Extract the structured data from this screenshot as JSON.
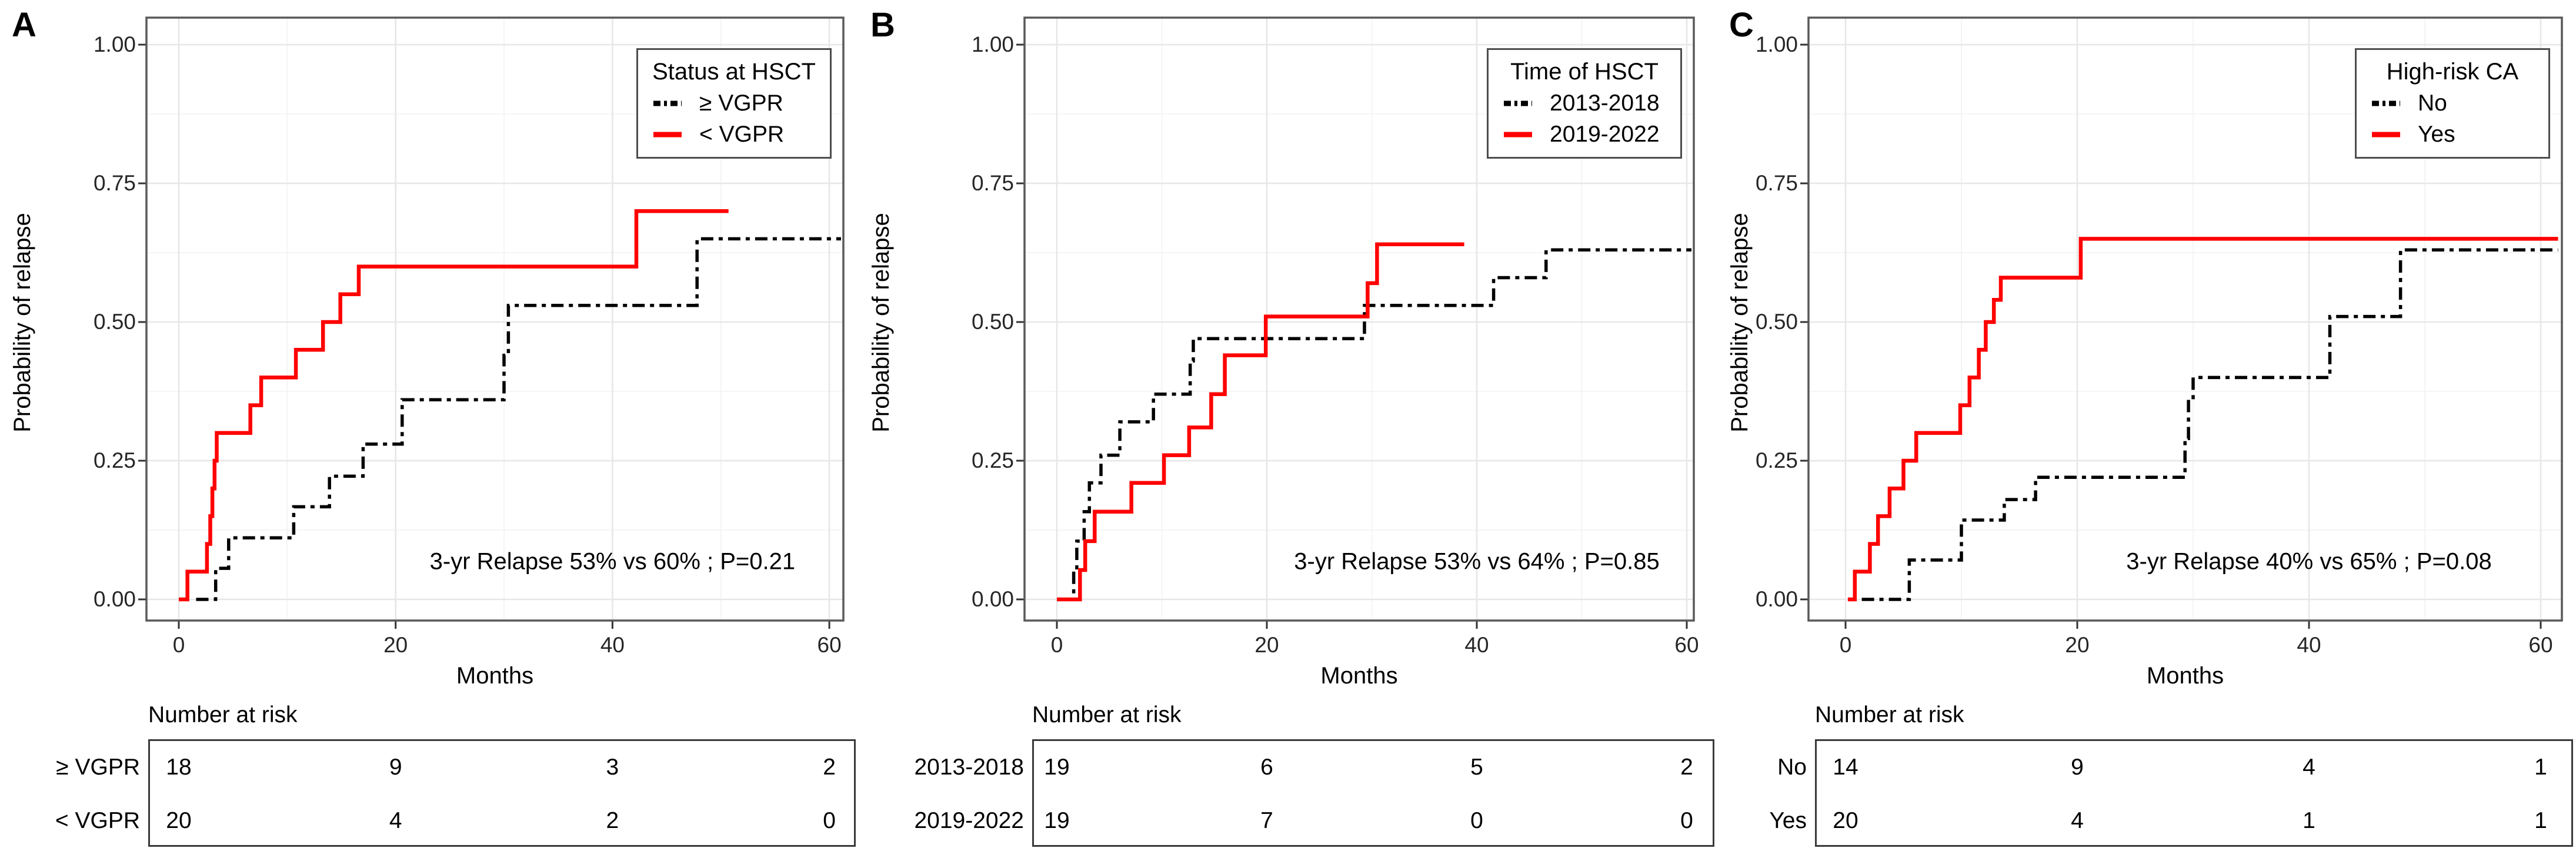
{
  "axes": {
    "y_title": "Probability of relapse",
    "x_title": "Months",
    "y_ticks": [
      "1.00",
      "0.75",
      "0.50",
      "0.25",
      "0.00"
    ],
    "x_ticks": [
      "0",
      "20",
      "40",
      "60"
    ]
  },
  "colors": {
    "series_red": "#FF0000",
    "series_black": "#000000",
    "grid_major": "#E7E7E7",
    "grid_minor": "#F2F2F2",
    "panel_border": "#595959",
    "tick_mark": "#333333"
  },
  "panels": [
    {
      "label": "A",
      "legend": {
        "title": "Status at HSCT",
        "items": [
          {
            "label": "≥ VGPR"
          },
          {
            "label": "< VGPR"
          }
        ]
      },
      "annotation": "3-yr Relapse 53% vs 60% ; P=0.21",
      "risk": {
        "header": "Number at risk",
        "rows": [
          {
            "label": "≥ VGPR",
            "values": [
              "18",
              "9",
              "3",
              "2"
            ]
          },
          {
            "label": "< VGPR",
            "values": [
              "20",
              "4",
              "2",
              "0"
            ]
          }
        ]
      }
    },
    {
      "label": "B",
      "legend": {
        "title": "Time of HSCT",
        "items": [
          {
            "label": "2013-2018"
          },
          {
            "label": "2019-2022"
          }
        ]
      },
      "annotation": "3-yr Relapse 53% vs 64% ; P=0.85",
      "risk": {
        "header": "Number at risk",
        "rows": [
          {
            "label": "2013-2018",
            "values": [
              "19",
              "6",
              "5",
              "2"
            ]
          },
          {
            "label": "2019-2022",
            "values": [
              "19",
              "7",
              "0",
              "0"
            ]
          }
        ]
      }
    },
    {
      "label": "C",
      "legend": {
        "title": "High-risk CA",
        "items": [
          {
            "label": "No"
          },
          {
            "label": "Yes"
          }
        ]
      },
      "annotation": "3-yr Relapse 40% vs 65% ; P=0.08",
      "risk": {
        "header": "Number at risk",
        "rows": [
          {
            "label": "No",
            "values": [
              "14",
              "9",
              "4",
              "1"
            ]
          },
          {
            "label": "Yes",
            "values": [
              "20",
              "4",
              "1",
              "1"
            ]
          }
        ]
      }
    }
  ],
  "chart_data": [
    {
      "type": "line",
      "subtype": "cumulative-incidence-step",
      "panel": "A",
      "title": "",
      "xlabel": "Months",
      "ylabel": "Probability of relapse",
      "xlim": [
        0,
        62
      ],
      "ylim": [
        0,
        1
      ],
      "x_tick_values": [
        0,
        20,
        40,
        60
      ],
      "y_tick_values": [
        0,
        0.25,
        0.5,
        0.75,
        1.0
      ],
      "grid": true,
      "legend_position": "top-right",
      "legend_title": "Status at HSCT",
      "annotation": "3-yr Relapse 53% vs 60% ; P=0.21",
      "series": [
        {
          "name": "≥ VGPR",
          "color": "#000000",
          "line": "dashdot",
          "x": [
            1.6,
            3.4,
            4.6,
            10.6,
            13.9,
            17.0,
            20.6,
            30.0,
            30.4,
            47.8,
            61.2
          ],
          "y": [
            0,
            0.056,
            0.111,
            0.167,
            0.222,
            0.28,
            0.36,
            0.44,
            0.53,
            0.65,
            0.65
          ]
        },
        {
          "name": "< VGPR",
          "color": "#FF0000",
          "line": "solid",
          "x": [
            0,
            0.8,
            2.6,
            2.9,
            3.1,
            3.3,
            3.5,
            6.6,
            7.6,
            10.8,
            13.3,
            14.9,
            16.6,
            42.2,
            50.7
          ],
          "y": [
            0,
            0.05,
            0.1,
            0.15,
            0.2,
            0.25,
            0.3,
            0.35,
            0.4,
            0.45,
            0.5,
            0.55,
            0.6,
            0.7,
            0.7
          ]
        }
      ],
      "number_at_risk": {
        "times": [
          0,
          20,
          40,
          60
        ],
        "groups": [
          {
            "name": "≥ VGPR",
            "n": [
              18,
              9,
              3,
              2
            ]
          },
          {
            "name": "< VGPR",
            "n": [
              20,
              4,
              2,
              0
            ]
          }
        ]
      }
    },
    {
      "type": "line",
      "subtype": "cumulative-incidence-step",
      "panel": "B",
      "title": "",
      "xlabel": "Months",
      "ylabel": "Probability of relapse",
      "xlim": [
        0,
        62
      ],
      "ylim": [
        0,
        1
      ],
      "x_tick_values": [
        0,
        20,
        40,
        60
      ],
      "y_tick_values": [
        0,
        0.25,
        0.5,
        0.75,
        1.0
      ],
      "grid": true,
      "legend_position": "top-right",
      "legend_title": "Time of HSCT",
      "annotation": "3-yr Relapse 53% vs 64% ; P=0.85",
      "series": [
        {
          "name": "2013-2018",
          "color": "#000000",
          "line": "dashdot",
          "x": [
            0.5,
            1.6,
            1.9,
            2.6,
            3.1,
            4.2,
            6.0,
            9.2,
            12.7,
            13.0,
            29.3,
            41.6,
            46.6,
            60.5
          ],
          "y": [
            0,
            0.053,
            0.105,
            0.158,
            0.21,
            0.26,
            0.32,
            0.37,
            0.43,
            0.47,
            0.53,
            0.58,
            0.63,
            0.63
          ]
        },
        {
          "name": "2019-2022",
          "color": "#FF0000",
          "line": "solid",
          "x": [
            0,
            2.2,
            2.7,
            3.6,
            7.1,
            10.2,
            12.6,
            14.7,
            16.0,
            19.9,
            29.6,
            30.5,
            38.8
          ],
          "y": [
            0,
            0.053,
            0.105,
            0.158,
            0.21,
            0.26,
            0.31,
            0.37,
            0.44,
            0.51,
            0.57,
            0.64,
            0.64
          ]
        }
      ],
      "number_at_risk": {
        "times": [
          0,
          20,
          40,
          60
        ],
        "groups": [
          {
            "name": "2013-2018",
            "n": [
              19,
              6,
              5,
              2
            ]
          },
          {
            "name": "2019-2022",
            "n": [
              19,
              7,
              0,
              0
            ]
          }
        ]
      }
    },
    {
      "type": "line",
      "subtype": "cumulative-incidence-step",
      "panel": "C",
      "title": "",
      "xlabel": "Months",
      "ylabel": "Probability of relapse",
      "xlim": [
        0,
        62
      ],
      "ylim": [
        0,
        1
      ],
      "x_tick_values": [
        0,
        20,
        40,
        60
      ],
      "y_tick_values": [
        0,
        0.25,
        0.5,
        0.75,
        1.0
      ],
      "grid": true,
      "legend_position": "top-right",
      "legend_title": "High-risk CA",
      "annotation": "3-yr Relapse 40% vs 65% ; P=0.08",
      "series": [
        {
          "name": "No",
          "color": "#000000",
          "line": "dashdot",
          "x": [
            1.4,
            5.5,
            10.0,
            13.7,
            16.4,
            29.3,
            29.6,
            30.0,
            41.8,
            47.9,
            61.5
          ],
          "y": [
            0,
            0.071,
            0.143,
            0.18,
            0.22,
            0.29,
            0.36,
            0.4,
            0.51,
            0.63,
            0.63
          ]
        },
        {
          "name": "Yes",
          "color": "#FF0000",
          "line": "solid",
          "x": [
            0.2,
            0.8,
            2.1,
            2.8,
            3.8,
            5.0,
            6.1,
            9.9,
            10.7,
            11.5,
            12.1,
            12.8,
            13.4,
            20.3,
            61.5
          ],
          "y": [
            0,
            0.05,
            0.1,
            0.15,
            0.2,
            0.25,
            0.3,
            0.35,
            0.4,
            0.45,
            0.5,
            0.54,
            0.58,
            0.65,
            0.65
          ]
        }
      ],
      "number_at_risk": {
        "times": [
          0,
          20,
          40,
          60
        ],
        "groups": [
          {
            "name": "No",
            "n": [
              14,
              9,
              4,
              1
            ]
          },
          {
            "name": "Yes",
            "n": [
              20,
              4,
              1,
              1
            ]
          }
        ]
      }
    }
  ]
}
